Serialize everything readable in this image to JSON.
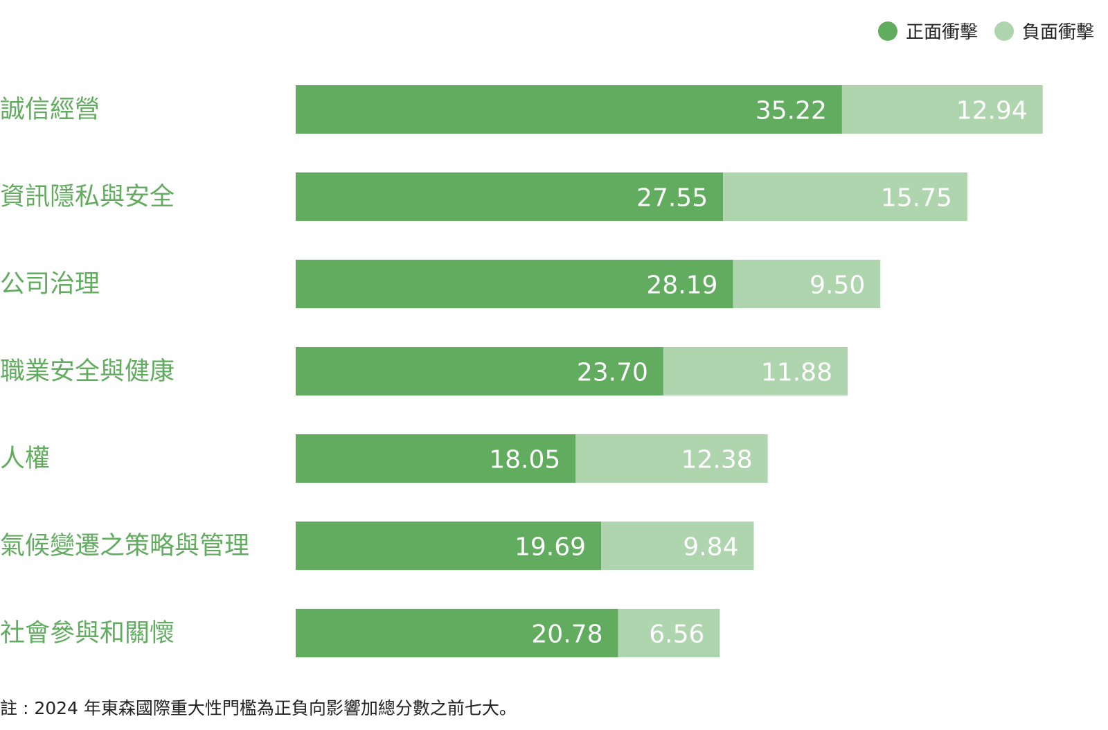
{
  "chart_data": {
    "type": "bar",
    "orientation": "horizontal",
    "stacked": true,
    "categories": [
      "誠信經營",
      "資訊隱私與安全",
      "公司治理",
      "職業安全與健康",
      "人權",
      "氣候變遷之策略與管理",
      "社會參與和關懷"
    ],
    "series": [
      {
        "name": "正面衝擊",
        "color": "#62ac5f",
        "values": [
          35.22,
          27.55,
          28.19,
          23.7,
          18.05,
          19.69,
          20.78
        ],
        "labels": [
          "35.22",
          "27.55",
          "28.19",
          "23.70",
          "18.05",
          "19.69",
          "20.78"
        ]
      },
      {
        "name": "負面衝擊",
        "color": "#afd5ae",
        "values": [
          12.94,
          15.75,
          9.5,
          11.88,
          12.38,
          9.84,
          6.56
        ],
        "labels": [
          "12.94",
          "15.75",
          "9.50",
          "11.88",
          "12.38",
          "9.84",
          "6.56"
        ]
      }
    ],
    "xlim": [
      0,
      48.16
    ],
    "grid": false,
    "legend_position": "top-right",
    "category_label_color": "#62ac5f",
    "value_label_color": "#ffffff"
  },
  "footnote": "註 : 2024 年東森國際重大性門檻為正負向影響加總分數之前七大。"
}
